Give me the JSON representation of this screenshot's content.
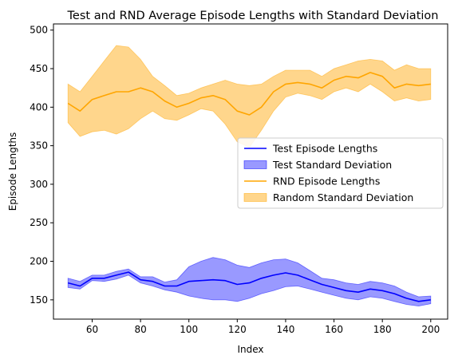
{
  "chart_data": {
    "type": "line",
    "title": "Test and RND Average Episode Lengths with Standard Deviation",
    "xlabel": "Index",
    "ylabel": "Episode Lengths",
    "xlim": [
      44,
      207
    ],
    "ylim": [
      125,
      508
    ],
    "xticks": [
      60,
      80,
      100,
      120,
      140,
      160,
      180,
      200
    ],
    "yticks": [
      150,
      200,
      250,
      300,
      350,
      400,
      450,
      500
    ],
    "grid": false,
    "legend_position": "center-right",
    "x": [
      50,
      55,
      60,
      65,
      70,
      75,
      80,
      85,
      90,
      95,
      100,
      105,
      110,
      115,
      120,
      125,
      130,
      135,
      140,
      145,
      150,
      155,
      160,
      165,
      170,
      175,
      180,
      185,
      190,
      195,
      200
    ],
    "series": [
      {
        "name": "Test Episode Lengths",
        "kind": "line",
        "color": "#0000ff",
        "values": [
          172,
          168,
          178,
          178,
          182,
          186,
          176,
          174,
          168,
          168,
          174,
          175,
          176,
          175,
          170,
          172,
          178,
          182,
          185,
          182,
          176,
          170,
          166,
          162,
          160,
          164,
          162,
          158,
          152,
          148,
          150
        ]
      },
      {
        "name": " Test Standard Deviation",
        "kind": "band",
        "color": "#0000ff",
        "opacity": 0.4,
        "lower": [
          166,
          164,
          175,
          174,
          177,
          182,
          172,
          168,
          163,
          160,
          155,
          152,
          150,
          150,
          148,
          152,
          158,
          162,
          167,
          168,
          164,
          160,
          156,
          152,
          150,
          154,
          152,
          148,
          144,
          142,
          145
        ],
        "upper": [
          178,
          174,
          182,
          182,
          187,
          190,
          180,
          180,
          173,
          176,
          193,
          200,
          205,
          202,
          195,
          192,
          198,
          202,
          203,
          198,
          188,
          178,
          176,
          172,
          170,
          174,
          172,
          168,
          160,
          154,
          155
        ]
      },
      {
        "name": "RND Episode Lengths",
        "kind": "line",
        "color": "#ffa500",
        "values": [
          405,
          395,
          410,
          415,
          420,
          420,
          425,
          420,
          408,
          400,
          405,
          412,
          415,
          410,
          395,
          390,
          400,
          420,
          430,
          432,
          430,
          425,
          435,
          440,
          438,
          445,
          440,
          425,
          430,
          428,
          430
        ]
      },
      {
        "name": " Random Standard Deviation",
        "kind": "band",
        "color": "#ffa500",
        "opacity": 0.45,
        "lower": [
          380,
          362,
          368,
          370,
          365,
          372,
          385,
          395,
          385,
          383,
          390,
          398,
          395,
          378,
          355,
          348,
          370,
          395,
          413,
          418,
          415,
          410,
          420,
          425,
          420,
          430,
          420,
          408,
          412,
          408,
          410
        ],
        "upper": [
          430,
          420,
          440,
          460,
          480,
          478,
          462,
          440,
          428,
          415,
          418,
          425,
          430,
          435,
          430,
          428,
          430,
          440,
          448,
          448,
          448,
          440,
          450,
          455,
          460,
          462,
          460,
          448,
          455,
          450,
          450
        ]
      }
    ]
  }
}
